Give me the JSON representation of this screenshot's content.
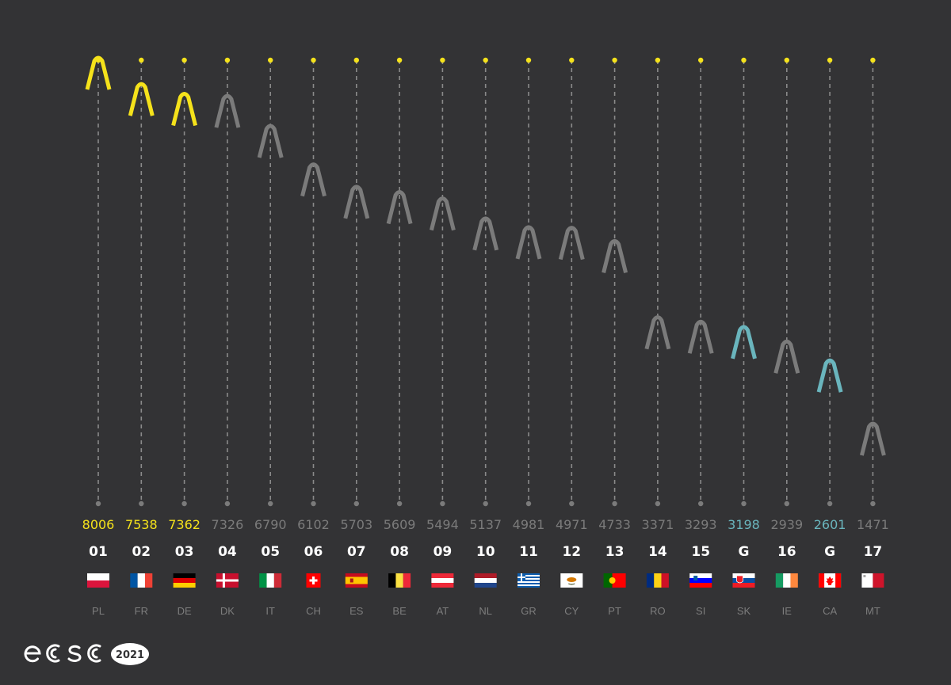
{
  "chart_data": {
    "type": "scatter",
    "ylim": [
      1000,
      8500
    ],
    "colors": {
      "top": "#f5e21b",
      "normal": "#7b7b7b",
      "guest": "#6ab5bd",
      "background": "#333335",
      "rank": "#ffffff",
      "code": "#7d7d7d"
    },
    "entries": [
      {
        "code": "PL",
        "rank": "01",
        "score": 8006,
        "status": "top",
        "flag": "pl"
      },
      {
        "code": "FR",
        "rank": "02",
        "score": 7538,
        "status": "top",
        "flag": "fr"
      },
      {
        "code": "DE",
        "rank": "03",
        "score": 7362,
        "status": "top",
        "flag": "de"
      },
      {
        "code": "DK",
        "rank": "04",
        "score": 7326,
        "status": "normal",
        "flag": "dk"
      },
      {
        "code": "IT",
        "rank": "05",
        "score": 6790,
        "status": "normal",
        "flag": "it"
      },
      {
        "code": "CH",
        "rank": "06",
        "score": 6102,
        "status": "normal",
        "flag": "ch"
      },
      {
        "code": "ES",
        "rank": "07",
        "score": 5703,
        "status": "normal",
        "flag": "es"
      },
      {
        "code": "BE",
        "rank": "08",
        "score": 5609,
        "status": "normal",
        "flag": "be"
      },
      {
        "code": "AT",
        "rank": "09",
        "score": 5494,
        "status": "normal",
        "flag": "at"
      },
      {
        "code": "NL",
        "rank": "10",
        "score": 5137,
        "status": "normal",
        "flag": "nl"
      },
      {
        "code": "GR",
        "rank": "11",
        "score": 4981,
        "status": "normal",
        "flag": "gr"
      },
      {
        "code": "CY",
        "rank": "12",
        "score": 4971,
        "status": "normal",
        "flag": "cy"
      },
      {
        "code": "PT",
        "rank": "13",
        "score": 4733,
        "status": "normal",
        "flag": "pt"
      },
      {
        "code": "RO",
        "rank": "14",
        "score": 3371,
        "status": "normal",
        "flag": "ro"
      },
      {
        "code": "SI",
        "rank": "15",
        "score": 3293,
        "status": "normal",
        "flag": "si"
      },
      {
        "code": "SK",
        "rank": "G",
        "score": 3198,
        "status": "guest",
        "flag": "sk"
      },
      {
        "code": "IE",
        "rank": "16",
        "score": 2939,
        "status": "normal",
        "flag": "ie"
      },
      {
        "code": "CA",
        "rank": "G",
        "score": 2601,
        "status": "guest",
        "flag": "ca"
      },
      {
        "code": "MT",
        "rank": "17",
        "score": 1471,
        "status": "normal",
        "flag": "mt"
      }
    ]
  },
  "logo": {
    "text": "ecsc",
    "year": "2021"
  }
}
